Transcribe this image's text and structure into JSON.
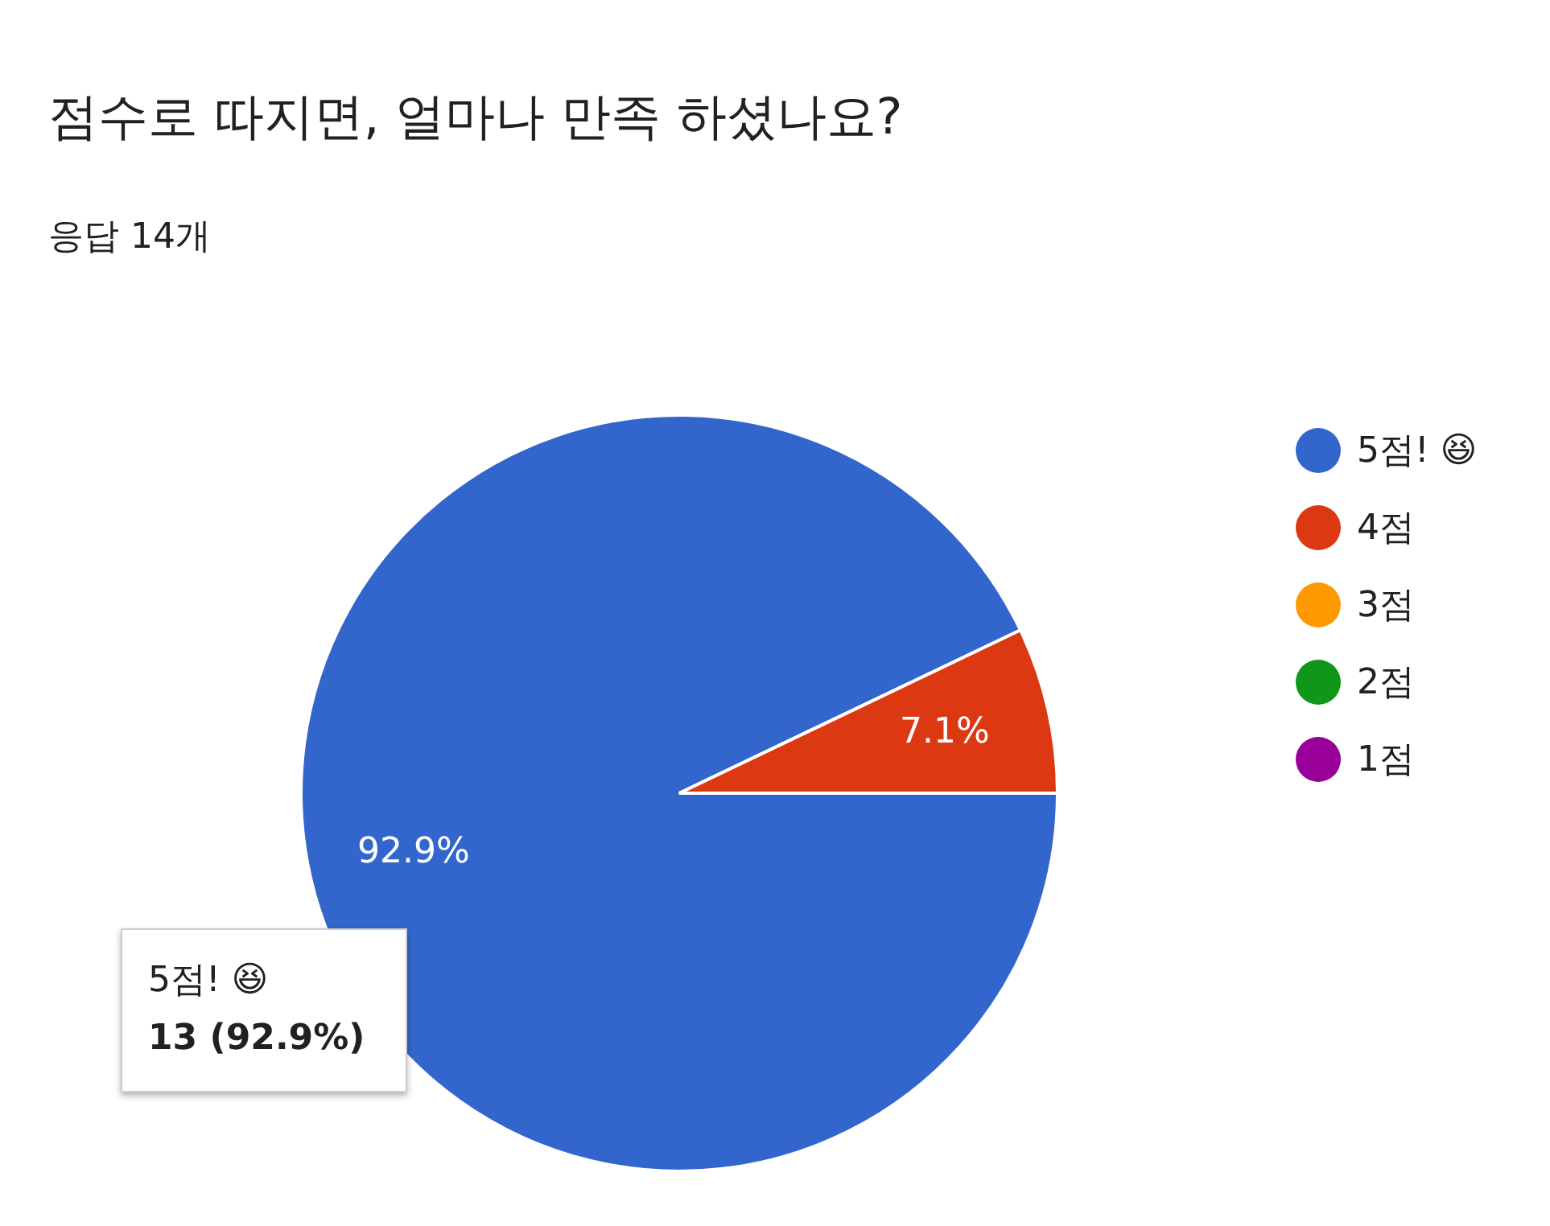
{
  "chart_data": {
    "type": "pie",
    "title": "점수로 따지면, 얼마나 만족 하셨나요?",
    "subtitle": "응답 14개",
    "categories": [
      "5점! 😆",
      "4점",
      "3점",
      "2점",
      "1점"
    ],
    "values": [
      92.9,
      7.1,
      0,
      0,
      0
    ],
    "value_labels": [
      "92.9%",
      "7.1%",
      null,
      null,
      null
    ],
    "colors": [
      "#3366cc",
      "#dc3912",
      "#ff9900",
      "#109618",
      "#990099"
    ],
    "legend": "right",
    "annotations": [
      "5점! 😆",
      "13 (92.9%)"
    ]
  }
}
